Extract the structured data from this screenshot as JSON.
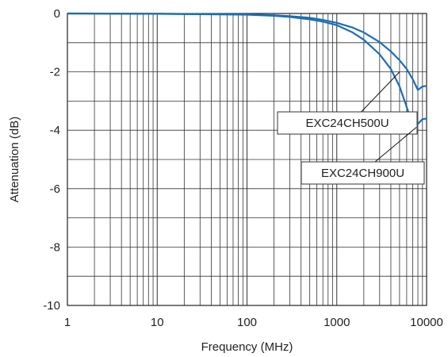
{
  "chart_data": {
    "type": "line",
    "xlabel": "Frequency (MHz)",
    "ylabel": "Attenuation (dB)",
    "xscale": "log",
    "xlim": [
      1,
      10000
    ],
    "ylim": [
      -10,
      0
    ],
    "x_ticks": [
      1,
      10,
      100,
      1000,
      10000
    ],
    "x_tick_labels": [
      "1",
      "10",
      "100",
      "1000",
      "10000"
    ],
    "y_ticks": [
      0,
      -2,
      -4,
      -6,
      -8,
      -10
    ],
    "y_tick_labels": [
      "0",
      "-2",
      "-4",
      "-6",
      "-8",
      "-10"
    ],
    "grid": true,
    "line_color": "#1a6fb5",
    "series": [
      {
        "name": "EXC24CH500U",
        "x": [
          1,
          10,
          100,
          200,
          300,
          500,
          700,
          1000,
          1500,
          2000,
          3000,
          4000,
          5000,
          6000,
          7000,
          8000,
          9000,
          10000
        ],
        "y": [
          0,
          -0.01,
          -0.03,
          -0.06,
          -0.09,
          -0.15,
          -0.22,
          -0.32,
          -0.48,
          -0.65,
          -0.98,
          -1.3,
          -1.6,
          -1.9,
          -2.25,
          -2.62,
          -2.5,
          -2.48
        ]
      },
      {
        "name": "EXC24CH900U",
        "x": [
          1,
          10,
          100,
          200,
          300,
          500,
          700,
          1000,
          1500,
          2000,
          3000,
          4000,
          5000,
          6000,
          7000,
          8000,
          9000,
          10000
        ],
        "y": [
          0,
          -0.01,
          -0.04,
          -0.08,
          -0.12,
          -0.2,
          -0.28,
          -0.4,
          -0.65,
          -0.9,
          -1.4,
          -1.9,
          -2.5,
          -3.2,
          -3.85,
          -3.78,
          -3.62,
          -3.6
        ]
      }
    ],
    "callouts": [
      {
        "series": "EXC24CH500U",
        "text": "EXC24CH500U",
        "target_x": 5000,
        "target_y": -2.0
      },
      {
        "series": "EXC24CH900U",
        "text": "EXC24CH900U",
        "target_x": 7700,
        "target_y": -3.9
      }
    ]
  }
}
